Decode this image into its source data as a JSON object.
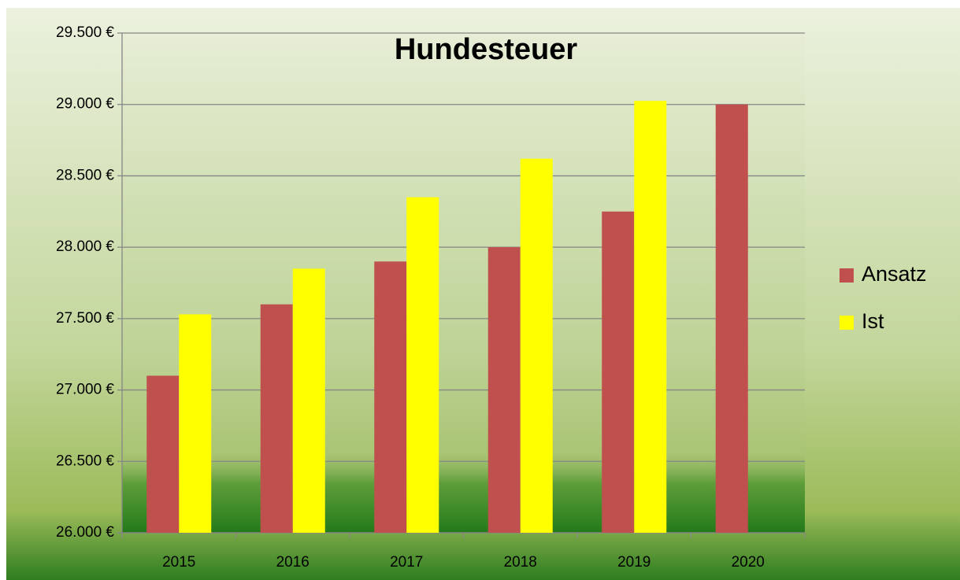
{
  "chart_data": {
    "type": "bar",
    "title": "Hundesteuer",
    "categories": [
      "2015",
      "2016",
      "2017",
      "2018",
      "2019",
      "2020"
    ],
    "series": [
      {
        "name": "Ansatz",
        "color": "#c0504d",
        "values": [
          27100,
          27600,
          27900,
          28000,
          28250,
          29000
        ]
      },
      {
        "name": "Ist",
        "color": "#ffff00",
        "values": [
          27530,
          27850,
          28350,
          28620,
          29025,
          null
        ]
      }
    ],
    "ylim": [
      26000,
      29500
    ],
    "yticks": [
      {
        "value": 26000,
        "label": "26.000 €"
      },
      {
        "value": 26500,
        "label": "26.500 €"
      },
      {
        "value": 27000,
        "label": "27.000 €"
      },
      {
        "value": 27500,
        "label": "27.500 €"
      },
      {
        "value": 28000,
        "label": "28.000 €"
      },
      {
        "value": 28500,
        "label": "28.500 €"
      },
      {
        "value": 29000,
        "label": "29.000 €"
      },
      {
        "value": 29500,
        "label": "29.500 €"
      }
    ],
    "grid": true,
    "legend": "right"
  }
}
